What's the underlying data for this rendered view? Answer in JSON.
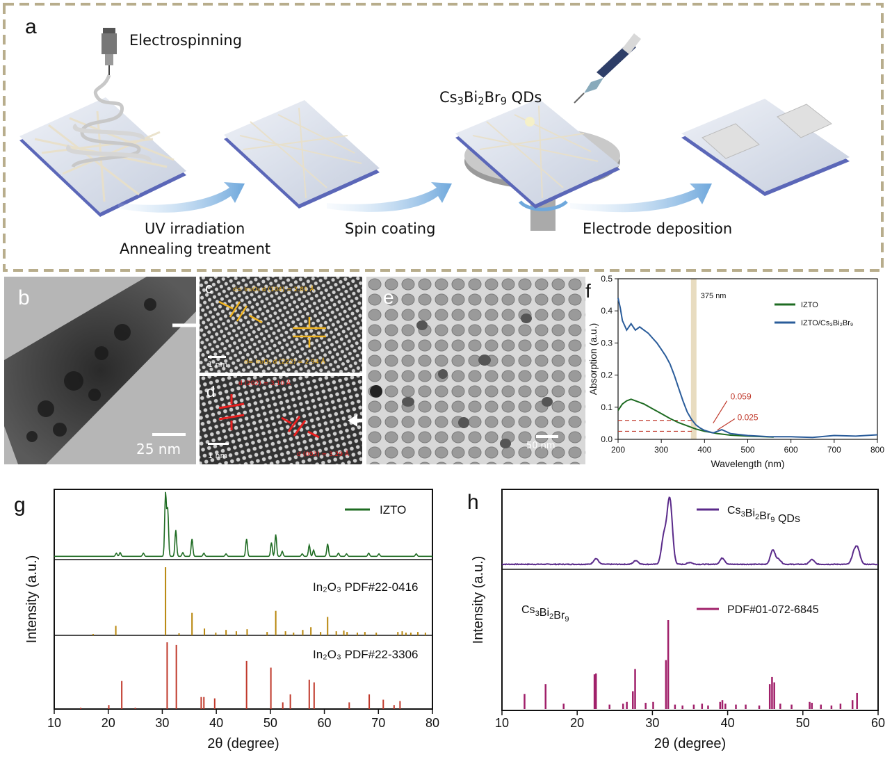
{
  "panel_a": {
    "letter": "a",
    "electrospinning": "Electrospinning",
    "uv": "UV irradiation",
    "annealing": "Annealing treatment",
    "spin_coating": "Spin coating",
    "electrode": "Electrode deposition",
    "qd_label": {
      "a": "Cs",
      "s1": "3",
      "b": "Bi",
      "s2": "2",
      "c": "Br",
      "s3": "9",
      "d": " QDs"
    }
  },
  "panel_b": {
    "letter": "b",
    "scale": "25 nm"
  },
  "panel_c": {
    "letter": "c",
    "scale": "1 nm",
    "ann1": "d= In₂O₃ d (104) = 2.81 Å",
    "ann2": "d= In₂O₃ d (222) = 2.94 Å"
  },
  "panel_d": {
    "letter": "d",
    "scale": "1 nm",
    "ann1": "d (202) = 3.10 Å",
    "ann2": "d (003) = 3.29 Å"
  },
  "panel_e": {
    "letter": "e",
    "scale": "50 nm"
  },
  "colors": {
    "izto": "#1e6b22",
    "qd_blue": "#2a5c9a",
    "pdf_0416": "#b8860b",
    "pdf_3306": "#c0392b",
    "cbb_purple": "#5a2a8a",
    "cbb_pdf": "#a0206a",
    "frame_dash": "#b8ad8c",
    "marker_band": "#e8dcc0",
    "annot_red": "#c0392b"
  },
  "chart_data": [
    {
      "panel": "f",
      "type": "line",
      "xlabel": "Wavelength (nm)",
      "ylabel": "Absorption (a.u.)",
      "xlim": [
        200,
        800
      ],
      "ylim": [
        0,
        0.5
      ],
      "xticks": [
        "200",
        "300",
        "400",
        "500",
        "600",
        "700",
        "800"
      ],
      "yticks": [
        "0.0",
        "0.1",
        "0.2",
        "0.3",
        "0.4",
        "0.5"
      ],
      "marker_label": "375 nm",
      "marker_x": 375,
      "annotations": [
        "0.059",
        "0.025"
      ],
      "annotation_levels": [
        0.059,
        0.025
      ],
      "legend_position": "top-right",
      "series": [
        {
          "name": "IZTO",
          "x": [
            200,
            210,
            220,
            230,
            240,
            260,
            280,
            300,
            320,
            340,
            360,
            380,
            400,
            430,
            460,
            500,
            540,
            560
          ],
          "y": [
            0.09,
            0.11,
            0.12,
            0.125,
            0.12,
            0.11,
            0.095,
            0.08,
            0.065,
            0.052,
            0.042,
            0.032,
            0.025,
            0.018,
            0.013,
            0.01,
            0.008,
            0.007
          ]
        },
        {
          "name": "IZTO/Cs₃Bi₂Br₉",
          "x": [
            200,
            205,
            210,
            220,
            230,
            240,
            250,
            260,
            270,
            280,
            290,
            300,
            310,
            320,
            330,
            340,
            350,
            360,
            370,
            380,
            390,
            400,
            420,
            440,
            460,
            500,
            550,
            600,
            650,
            700,
            750,
            800
          ],
          "y": [
            0.44,
            0.41,
            0.37,
            0.34,
            0.36,
            0.34,
            0.35,
            0.34,
            0.33,
            0.315,
            0.3,
            0.28,
            0.26,
            0.235,
            0.2,
            0.16,
            0.12,
            0.085,
            0.062,
            0.045,
            0.035,
            0.028,
            0.02,
            0.03,
            0.018,
            0.012,
            0.008,
            0.008,
            0.006,
            0.012,
            0.01,
            0.014
          ]
        }
      ]
    },
    {
      "panel": "g",
      "type": "line",
      "xlabel": "2θ (degree)",
      "ylabel": "Intensity (a.u.)",
      "xlim": [
        10,
        80
      ],
      "xticks": [
        "10",
        "20",
        "30",
        "40",
        "50",
        "60",
        "70",
        "80"
      ],
      "series": [
        {
          "name": "IZTO",
          "peaks": [
            [
              21.5,
              0.05
            ],
            [
              22.2,
              0.06
            ],
            [
              26.5,
              0.05
            ],
            [
              30.6,
              1.0
            ],
            [
              31.0,
              0.75
            ],
            [
              32.5,
              0.42
            ],
            [
              33.8,
              0.06
            ],
            [
              35.5,
              0.28
            ],
            [
              37.7,
              0.05
            ],
            [
              41.8,
              0.04
            ],
            [
              45.6,
              0.28
            ],
            [
              50.2,
              0.22
            ],
            [
              51.0,
              0.35
            ],
            [
              52.2,
              0.08
            ],
            [
              55.9,
              0.04
            ],
            [
              57.2,
              0.18
            ],
            [
              58.0,
              0.1
            ],
            [
              60.6,
              0.2
            ],
            [
              62.6,
              0.05
            ],
            [
              64.1,
              0.04
            ],
            [
              68.2,
              0.05
            ],
            [
              70.1,
              0.04
            ],
            [
              77.0,
              0.04
            ]
          ]
        },
        {
          "name": "In₂O₃ PDF#22-0416",
          "sticks": [
            [
              17.2,
              0.02
            ],
            [
              21.4,
              0.14
            ],
            [
              30.6,
              1.0
            ],
            [
              33.1,
              0.03
            ],
            [
              35.5,
              0.33
            ],
            [
              37.8,
              0.1
            ],
            [
              39.9,
              0.04
            ],
            [
              41.8,
              0.08
            ],
            [
              43.7,
              0.06
            ],
            [
              45.7,
              0.09
            ],
            [
              49.4,
              0.05
            ],
            [
              51.0,
              0.36
            ],
            [
              52.8,
              0.06
            ],
            [
              54.3,
              0.04
            ],
            [
              56.0,
              0.08
            ],
            [
              57.5,
              0.12
            ],
            [
              59.3,
              0.05
            ],
            [
              60.6,
              0.27
            ],
            [
              62.2,
              0.06
            ],
            [
              63.6,
              0.07
            ],
            [
              64.2,
              0.05
            ],
            [
              66.1,
              0.04
            ],
            [
              67.5,
              0.05
            ],
            [
              69.6,
              0.04
            ],
            [
              73.6,
              0.05
            ],
            [
              74.4,
              0.06
            ],
            [
              75.1,
              0.04
            ],
            [
              76.0,
              0.04
            ],
            [
              77.3,
              0.05
            ],
            [
              78.7,
              0.04
            ]
          ]
        },
        {
          "name": "In₂O₃ PDF#22-3306",
          "sticks": [
            [
              14.9,
              0.02
            ],
            [
              20.1,
              0.06
            ],
            [
              22.5,
              0.42
            ],
            [
              25.0,
              0.02
            ],
            [
              30.9,
              1.0
            ],
            [
              32.6,
              0.96
            ],
            [
              37.2,
              0.18
            ],
            [
              37.7,
              0.18
            ],
            [
              39.7,
              0.16
            ],
            [
              45.6,
              0.72
            ],
            [
              50.1,
              0.62
            ],
            [
              52.3,
              0.1
            ],
            [
              53.7,
              0.22
            ],
            [
              57.2,
              0.44
            ],
            [
              58.1,
              0.4
            ],
            [
              64.6,
              0.1
            ],
            [
              68.3,
              0.22
            ],
            [
              70.9,
              0.14
            ],
            [
              72.9,
              0.06
            ],
            [
              74.0,
              0.12
            ]
          ]
        }
      ]
    },
    {
      "panel": "h",
      "type": "line",
      "xlabel": "2θ (degree)",
      "ylabel": "Intensity (a.u.)",
      "xlim": [
        10,
        60
      ],
      "xticks": [
        "10",
        "20",
        "30",
        "40",
        "50",
        "60"
      ],
      "upper_legend": {
        "name": {
          "a": "Cs",
          "s1": "3",
          "b": "Bi",
          "s2": "2",
          "c": "Br",
          "s3": "9",
          "d": "  QDs"
        }
      },
      "lower_label": {
        "a": "Cs",
        "s1": "3",
        "b": "Bi",
        "s2": "2",
        "c": "Br",
        "s3": "9"
      },
      "series": [
        {
          "name": "Cs₃Bi₂Br₉ QDs",
          "peaks": [
            [
              22.5,
              0.12
            ],
            [
              27.8,
              0.08
            ],
            [
              31.5,
              0.55
            ],
            [
              32.1,
              0.6
            ],
            [
              32.4,
              0.95
            ],
            [
              35.0,
              0.04
            ],
            [
              39.3,
              0.13
            ],
            [
              46.0,
              0.3
            ],
            [
              46.8,
              0.1
            ],
            [
              51.2,
              0.1
            ],
            [
              56.8,
              0.22
            ],
            [
              57.3,
              0.3
            ]
          ]
        },
        {
          "name": "PDF#01-072-6845",
          "sticks": [
            [
              13.0,
              0.17
            ],
            [
              15.8,
              0.28
            ],
            [
              18.2,
              0.06
            ],
            [
              22.3,
              0.39
            ],
            [
              22.5,
              0.4
            ],
            [
              24.3,
              0.05
            ],
            [
              26.1,
              0.06
            ],
            [
              26.6,
              0.08
            ],
            [
              27.4,
              0.2
            ],
            [
              27.7,
              0.45
            ],
            [
              29.1,
              0.07
            ],
            [
              30.1,
              0.08
            ],
            [
              31.8,
              0.55
            ],
            [
              32.1,
              1.0
            ],
            [
              33.0,
              0.05
            ],
            [
              34.0,
              0.04
            ],
            [
              35.5,
              0.05
            ],
            [
              36.6,
              0.06
            ],
            [
              37.4,
              0.04
            ],
            [
              39.0,
              0.08
            ],
            [
              39.3,
              0.1
            ],
            [
              39.7,
              0.06
            ],
            [
              41.1,
              0.05
            ],
            [
              42.4,
              0.05
            ],
            [
              44.2,
              0.04
            ],
            [
              45.6,
              0.28
            ],
            [
              45.9,
              0.36
            ],
            [
              46.2,
              0.3
            ],
            [
              47.0,
              0.06
            ],
            [
              48.5,
              0.05
            ],
            [
              50.9,
              0.08
            ],
            [
              51.2,
              0.07
            ],
            [
              52.4,
              0.05
            ],
            [
              53.8,
              0.04
            ],
            [
              55.0,
              0.06
            ],
            [
              56.6,
              0.1
            ],
            [
              57.2,
              0.18
            ]
          ]
        }
      ]
    }
  ]
}
